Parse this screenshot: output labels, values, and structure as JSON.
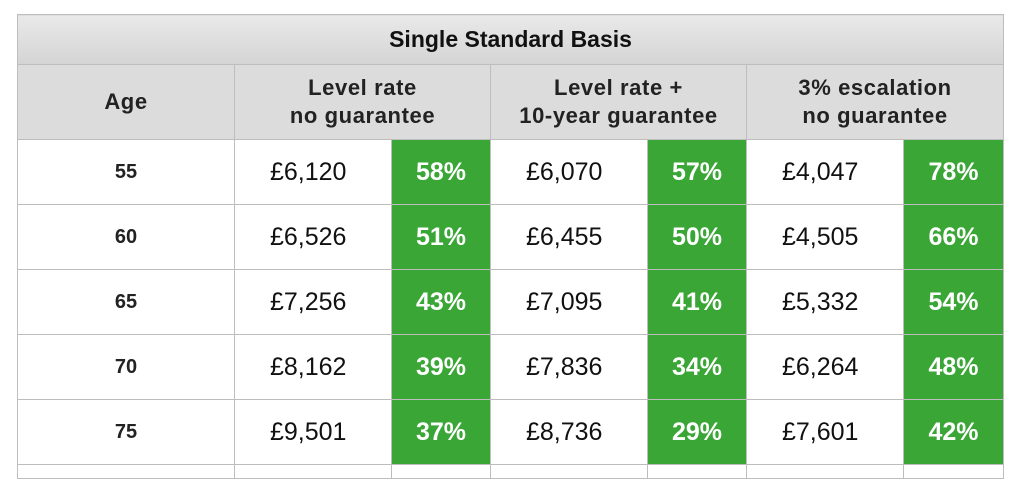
{
  "table": {
    "title": "Single Standard Basis",
    "headers": {
      "age": "Age",
      "col1": [
        "Level rate",
        "no guarantee"
      ],
      "col2": [
        "Level rate +",
        "10-year guarantee"
      ],
      "col3": [
        "3% escalation",
        "no guarantee"
      ]
    },
    "rows": [
      {
        "age": "55",
        "c1_amount": "£6,120",
        "c1_pct": "58%",
        "c2_amount": "£6,070",
        "c2_pct": "57%",
        "c3_amount": "£4,047",
        "c3_pct": "78%"
      },
      {
        "age": "60",
        "c1_amount": "£6,526",
        "c1_pct": "51%",
        "c2_amount": "£6,455",
        "c2_pct": "50%",
        "c3_amount": "£4,505",
        "c3_pct": "66%"
      },
      {
        "age": "65",
        "c1_amount": "£7,256",
        "c1_pct": "43%",
        "c2_amount": "£7,095",
        "c2_pct": "41%",
        "c3_amount": "£5,332",
        "c3_pct": "54%"
      },
      {
        "age": "70",
        "c1_amount": "£8,162",
        "c1_pct": "39%",
        "c2_amount": "£7,836",
        "c2_pct": "34%",
        "c3_amount": "£6,264",
        "c3_pct": "48%"
      },
      {
        "age": "75",
        "c1_amount": "£9,501",
        "c1_pct": "37%",
        "c2_amount": "£8,736",
        "c2_pct": "29%",
        "c3_amount": "£7,601",
        "c3_pct": "42%"
      }
    ]
  },
  "colors": {
    "pct_cell_bg": "#3aa636",
    "header_bg": "#dcdcdc",
    "border": "#bdbdbd"
  }
}
